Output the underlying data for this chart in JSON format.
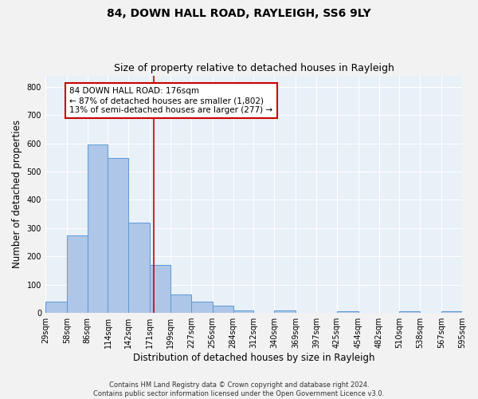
{
  "title1": "84, DOWN HALL ROAD, RAYLEIGH, SS6 9LY",
  "title2": "Size of property relative to detached houses in Rayleigh",
  "xlabel": "Distribution of detached houses by size in Rayleigh",
  "ylabel": "Number of detached properties",
  "footnote": "Contains HM Land Registry data © Crown copyright and database right 2024.\nContains public sector information licensed under the Open Government Licence v3.0.",
  "bin_edges": [
    29,
    58,
    86,
    114,
    142,
    171,
    199,
    227,
    256,
    284,
    312,
    340,
    369,
    397,
    425,
    454,
    482,
    510,
    538,
    567,
    595
  ],
  "bar_heights": [
    40,
    275,
    595,
    548,
    320,
    170,
    65,
    40,
    25,
    10,
    0,
    10,
    0,
    0,
    5,
    0,
    0,
    5,
    0,
    5
  ],
  "bar_color": "#aec6e8",
  "bar_edge_color": "#5b9bd5",
  "property_size": 176,
  "vline_color": "#cc0000",
  "annotation_text": "84 DOWN HALL ROAD: 176sqm\n← 87% of detached houses are smaller (1,802)\n13% of semi-detached houses are larger (277) →",
  "annotation_box_color": "#cc0000",
  "ylim": [
    0,
    840
  ],
  "yticks": [
    0,
    100,
    200,
    300,
    400,
    500,
    600,
    700,
    800
  ],
  "background_color": "#e8f0f8",
  "grid_color": "#ffffff",
  "fig_bg_color": "#f2f2f2",
  "title1_fontsize": 10,
  "title2_fontsize": 9,
  "tick_label_fontsize": 7,
  "axis_label_fontsize": 8.5,
  "footnote_fontsize": 6,
  "annotation_fontsize": 7.5
}
